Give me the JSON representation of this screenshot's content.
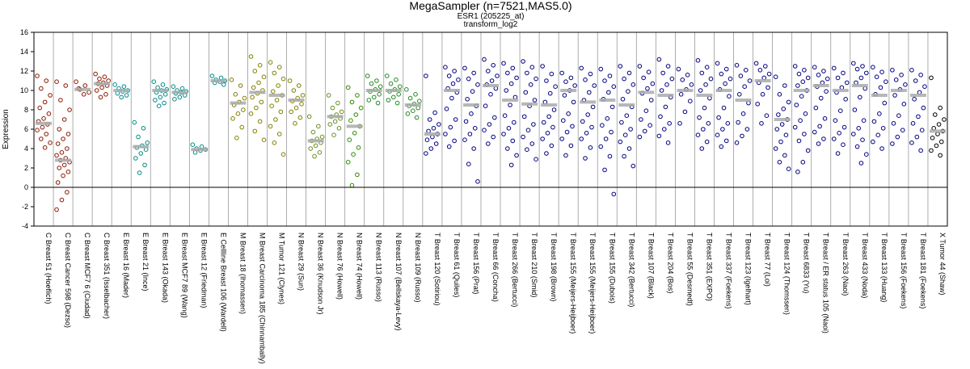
{
  "chart_data": {
    "type": "strip",
    "title": "MegaSampler (n=7521,MAS5.0)",
    "subtitle": [
      "ESR1 (205225_at)",
      "transform_log2"
    ],
    "y_label": "Expression",
    "ylim": [
      -4,
      16
    ],
    "yticks": [
      -4,
      -2,
      0,
      2,
      4,
      6,
      8,
      10,
      12,
      14,
      16
    ],
    "zero_line": 0,
    "groups": [
      {
        "label": "C Breast 51 (Hoeflich)",
        "color": "#8b1a00",
        "median": 6.6,
        "values": [
          11.5,
          11,
          10.2,
          9.5,
          8.8,
          8.2,
          7.6,
          7.1,
          6.8,
          6.5,
          6.2,
          5.9,
          5.5,
          5,
          4.6,
          4.1
        ]
      },
      {
        "label": "C Breast Cancer 598 (Dezso)",
        "color": "#8b1a00",
        "median": 2.8,
        "values": [
          10.9,
          10.5,
          9,
          8,
          7,
          6,
          5.5,
          5,
          4.5,
          4,
          3.6,
          3.3,
          3,
          2.8,
          2.6,
          2.3,
          2,
          1.6,
          1.2,
          0.5,
          -0.5,
          -1.3,
          -2.3
        ]
      },
      {
        "label": "C Breast MCF7 6 (Ciudad)",
        "color": "#8b1a00",
        "median": 10.1,
        "values": [
          10.9,
          10.5,
          10.1,
          9.8,
          9.6,
          10.2
        ]
      },
      {
        "label": "C Breast 351 (Isselbacher)",
        "color": "#8b1a00",
        "median": 10.7,
        "values": [
          11.7,
          11.4,
          11.2,
          11,
          10.8,
          10.7,
          10.5,
          10.3,
          10,
          9.6,
          9.3
        ]
      },
      {
        "label": "E Breast 16 (Mader)",
        "color": "#008b8b",
        "median": 10,
        "values": [
          10.6,
          10.4,
          10.2,
          10,
          9.9,
          9.7,
          9.5,
          9.3
        ]
      },
      {
        "label": "E Breast 21 (Ince)",
        "color": "#008b8b",
        "median": 4.2,
        "values": [
          6.7,
          6.1,
          5.2,
          4.6,
          4.3,
          4.1,
          3.9,
          3.5,
          3,
          2.3,
          1.5
        ]
      },
      {
        "label": "E Breast 143 (Okada)",
        "color": "#008b8b",
        "median": 10,
        "values": [
          10.9,
          10.6,
          10.3,
          10.1,
          10,
          9.8,
          9.6,
          9.3,
          9,
          8.7,
          8.4
        ]
      },
      {
        "label": "E Breast MCF7 89 (Wang)",
        "color": "#008b8b",
        "median": 9.8,
        "values": [
          10.4,
          10.2,
          10,
          9.9,
          9.8,
          9.7,
          9.5,
          9.3,
          9.1
        ]
      },
      {
        "label": "E Breast 12 (Friedman)",
        "color": "#008b8b",
        "median": 3.9,
        "values": [
          4.4,
          4.2,
          4,
          3.9,
          3.8,
          3.6
        ]
      },
      {
        "label": "E Cellline Breast 106 (Wardell)",
        "color": "#008b8b",
        "median": 11,
        "values": [
          11.5,
          11.3,
          11.1,
          11,
          10.9,
          10.8,
          10.6
        ]
      },
      {
        "label": "M Breast 18 (Ihomassen)",
        "color": "#808000",
        "median": 8.7,
        "values": [
          11.1,
          10.5,
          9.6,
          9.2,
          8.8,
          8.5,
          8,
          7.6,
          7.1,
          6.2,
          5.1
        ]
      },
      {
        "label": "M Breast Carcinoma 185 (Chinnambally)",
        "color": "#808000",
        "median": 9.8,
        "values": [
          13.5,
          12.6,
          12,
          11.4,
          10.8,
          10.3,
          10,
          9.7,
          9.3,
          8.8,
          8.2,
          7.6,
          6.8,
          5.8,
          4.9
        ]
      },
      {
        "label": "M Tumor 121 (Clynes)",
        "color": "#808000",
        "median": 9.5,
        "values": [
          12.9,
          12.4,
          11.8,
          11.2,
          10.5,
          9.9,
          9.5,
          9,
          8.4,
          7.8,
          7,
          6.3,
          5.5,
          4.6,
          3.4
        ]
      },
      {
        "label": "N Breast 29 (Sun)",
        "color": "#808000",
        "median": 9,
        "values": [
          11,
          10.5,
          10,
          9.5,
          9.2,
          8.9,
          8.6,
          8.2,
          7.8,
          7.2,
          6.6
        ]
      },
      {
        "label": "N Breast 36 (Knudson Jr)",
        "color": "#6b8e23",
        "median": 4.8,
        "values": [
          7.3,
          6.3,
          5.7,
          5.2,
          5,
          4.8,
          4.6,
          4.3,
          4,
          3.6,
          3.2
        ]
      },
      {
        "label": "N Breast 76 (Howell)",
        "color": "#6b8e23",
        "median": 7.3,
        "values": [
          9.5,
          8.7,
          8.2,
          7.8,
          7.5,
          7.3,
          7.1,
          6.8,
          6.5,
          6.1,
          5.4
        ]
      },
      {
        "label": "N Breast 74 (Howell)",
        "color": "#2e8b00",
        "median": 6.3,
        "values": [
          10.3,
          9.5,
          8.8,
          8.2,
          7.5,
          6.9,
          6.3,
          5.6,
          4.9,
          4.1,
          3.4,
          2.6,
          1.3,
          0.2
        ]
      },
      {
        "label": "N Breast 113 (Russo)",
        "color": "#228b22",
        "median": 10,
        "values": [
          11.5,
          11,
          10.7,
          10.4,
          10.1,
          9.9,
          9.6,
          9.3,
          9,
          8.7
        ]
      },
      {
        "label": "N Breast 107 (Bellskaya-Levy)",
        "color": "#228b22",
        "median": 10,
        "values": [
          11.5,
          11.1,
          10.7,
          10.4,
          10.1,
          9.9,
          9.6,
          9.3,
          9,
          8.7
        ]
      },
      {
        "label": "N Breast 109 (Russo)",
        "color": "#228b22",
        "median": 8.5,
        "values": [
          10.1,
          9.6,
          9.2,
          8.9,
          8.6,
          8.4,
          8.2,
          7.9,
          7.6,
          7.2
        ]
      },
      {
        "label": "T Breast 120 (Sotiriou)",
        "color": "#000080",
        "median": 5.5,
        "values": [
          11.5,
          7.7,
          7,
          6.5,
          6.1,
          5.8,
          5.5,
          5.2,
          4.9,
          4.5,
          4,
          3.5
        ]
      },
      {
        "label": "T Breast 61 (Quiles)",
        "color": "#000080",
        "median": 10,
        "values": [
          12.4,
          12,
          11.5,
          11.1,
          10.7,
          10.2,
          9.8,
          9.2,
          8.1,
          7,
          6.2,
          5.5,
          4.8,
          4.2
        ]
      },
      {
        "label": "T Breast 156 (Prat)",
        "color": "#000080",
        "median": 8.5,
        "values": [
          12.3,
          11.8,
          11.2,
          10.6,
          9.9,
          9.1,
          8.4,
          7.6,
          6.8,
          6.1,
          5.5,
          4.9,
          4,
          2.4,
          0.6
        ]
      },
      {
        "label": "T Breast 66 (Concha)",
        "color": "#000080",
        "median": 10.5,
        "values": [
          13.2,
          12.6,
          12,
          11.5,
          11,
          10.6,
          10.2,
          9.6,
          8.4,
          7.2,
          6.5,
          5.9,
          5.2,
          4.5
        ]
      },
      {
        "label": "T Breast 266 (Bertucci)",
        "color": "#000080",
        "median": 9,
        "values": [
          12.8,
          12.3,
          11.8,
          11.3,
          10.7,
          10,
          9.3,
          8.5,
          7.4,
          6.7,
          6.1,
          5.5,
          4.8,
          4,
          3.3,
          2.3
        ]
      },
      {
        "label": "T Breast 210 (Smid)",
        "color": "#000080",
        "median": 8.6,
        "values": [
          13,
          12.4,
          11.8,
          11.2,
          10.6,
          9.8,
          9,
          8.4,
          7.3,
          6.5,
          5.9,
          5.2,
          4.5,
          3.9,
          2.9
        ]
      },
      {
        "label": "T Breast 198 (Brown)",
        "color": "#000080",
        "median": 8.5,
        "values": [
          12.5,
          11.7,
          11,
          10.4,
          9.7,
          8.8,
          8,
          7.3,
          6.7,
          6.2,
          5.6,
          5,
          4.3,
          3.5
        ]
      },
      {
        "label": "T Breast 155 (Meijers-Heijboer)",
        "color": "#000080",
        "median": 10,
        "values": [
          11.8,
          11.3,
          10.9,
          10.5,
          10,
          9.5,
          8.8,
          7.6,
          6.9,
          6.3,
          5.7,
          5,
          4.3,
          3.3
        ]
      },
      {
        "label": "T Breast 155 (Meijers-Heijboer)",
        "color": "#000080",
        "median": 8.8,
        "values": [
          12.3,
          11.7,
          11.1,
          10.5,
          9.8,
          9,
          8.3,
          7.5,
          6.8,
          6.2,
          5.6,
          5,
          4.1,
          3
        ]
      },
      {
        "label": "T Breast 155 (Dubois)",
        "color": "#000080",
        "median": 9,
        "values": [
          12.2,
          11.5,
          11,
          10.4,
          9.8,
          9.1,
          8.3,
          7.1,
          6.4,
          5.7,
          5,
          4.2,
          3.2,
          1.8,
          -0.7
        ]
      },
      {
        "label": "T Breast 342 (Bertucci)",
        "color": "#000080",
        "median": 8.5,
        "values": [
          12.5,
          11.8,
          11.2,
          10.6,
          9.9,
          9.1,
          8.3,
          7.4,
          6.7,
          6,
          5.4,
          4.7,
          4,
          3.2,
          2.2
        ]
      },
      {
        "label": "T Breast 107 (Black)",
        "color": "#000080",
        "median": 9.8,
        "values": [
          12.5,
          11.9,
          11.3,
          10.7,
          10.2,
          9.7,
          9,
          7.9,
          7,
          6.4,
          5.8,
          5.2
        ]
      },
      {
        "label": "T Breast 204 (Bos)",
        "color": "#000080",
        "median": 9.5,
        "values": [
          13.2,
          12.5,
          11.8,
          11.2,
          10.6,
          10,
          9.3,
          8.3,
          7.3,
          6.6,
          6,
          5.3,
          4.6
        ]
      },
      {
        "label": "T Breast 55 (Desmedt)",
        "color": "#000080",
        "median": 10,
        "values": [
          12.2,
          11.6,
          11.1,
          10.6,
          10.1,
          9.6,
          8.9,
          7.8,
          6.6
        ]
      },
      {
        "label": "T Breast 351 (EXPO)",
        "color": "#000080",
        "median": 9.5,
        "values": [
          13.1,
          12.4,
          11.8,
          11.2,
          10.6,
          10,
          9.2,
          8.2,
          7.2,
          6.6,
          6,
          5.4,
          4.7,
          4
        ]
      },
      {
        "label": "T Breast 337 (Foekens)",
        "color": "#000080",
        "median": 10,
        "values": [
          12.8,
          12.2,
          11.7,
          11.2,
          10.7,
          10.1,
          9.4,
          8.2,
          7.2,
          6.6,
          6,
          5.4,
          4.8,
          4.2
        ]
      },
      {
        "label": "T Breast 123 (Igelhart)",
        "color": "#000080",
        "median": 9,
        "values": [
          12.6,
          12.1,
          11.5,
          11,
          10.4,
          9.6,
          8.7,
          7.6,
          6.7,
          6,
          5.3,
          4.6
        ]
      },
      {
        "label": "T Breast 77 (Loi)",
        "color": "#000080",
        "median": 11,
        "values": [
          12.8,
          12.5,
          12.1,
          11.7,
          11.3,
          10.8,
          10.3,
          9.6,
          8.6,
          7.4,
          6.6
        ]
      },
      {
        "label": "T Breast 124 (Thomssen)",
        "color": "#000080",
        "median": 7,
        "values": [
          11.4,
          10.5,
          9.6,
          8.8,
          8.1,
          7.5,
          7,
          6.5,
          6,
          5.4,
          4.7,
          4,
          3.3,
          2.6,
          1.9
        ]
      },
      {
        "label": "T Breast 6833 (Yu)",
        "color": "#000080",
        "median": 10,
        "values": [
          12.5,
          12.1,
          11.7,
          11.3,
          10.9,
          10.5,
          10,
          9.4,
          8.5,
          7.6,
          6.9,
          6.2,
          5.5,
          4.8,
          3.8,
          2.6,
          1.6
        ]
      },
      {
        "label": "T Breast / ER status 105 (Naoi)",
        "color": "#000080",
        "median": 10.5,
        "values": [
          12.4,
          12,
          11.6,
          11.2,
          10.8,
          10.4,
          9.9,
          9.2,
          8.2,
          7.1,
          6.3,
          5.7,
          5,
          4.5
        ]
      },
      {
        "label": "T Breast 263 (Naoi)",
        "color": "#000080",
        "median": 10,
        "values": [
          12.3,
          11.8,
          11.3,
          10.8,
          10.3,
          9.8,
          9.1,
          7.9,
          6.9,
          6.2,
          5.6,
          5,
          4.4,
          3.5
        ]
      },
      {
        "label": "T Breast 433 (Noda)",
        "color": "#000080",
        "median": 10.5,
        "values": [
          12.8,
          12.5,
          12.2,
          11.8,
          11.3,
          10.8,
          10.2,
          9.3,
          8,
          6.9,
          6.1,
          5.5,
          4.9,
          4.2,
          3.4,
          2.5
        ]
      },
      {
        "label": "T Breast 133 (Huang)",
        "color": "#000080",
        "median": 9.5,
        "values": [
          12.4,
          11.9,
          11.4,
          10.9,
          10.3,
          9.6,
          8.7,
          7.6,
          6.8,
          6.1,
          5.4,
          4.7,
          4
        ]
      },
      {
        "label": "T Breast 156 (Foekens)",
        "color": "#000080",
        "median": 10,
        "values": [
          12.1,
          11.6,
          11.1,
          10.6,
          10.1,
          9.5,
          8.6,
          7.4,
          6.6,
          5.9,
          5.2,
          4.5
        ]
      },
      {
        "label": "T Breast 181 (Foekens)",
        "color": "#000080",
        "median": 9.5,
        "values": [
          12.1,
          11.6,
          11,
          10.4,
          9.8,
          9.1,
          8.2,
          7.3,
          6.6,
          5.9,
          5.2,
          4.6,
          3.8
        ]
      },
      {
        "label": "X Tumor 44 (Shaw)",
        "color": "#000000",
        "median": 5.8,
        "values": [
          11.3,
          8.2,
          7.5,
          7,
          6.5,
          6.1,
          5.8,
          5.5,
          5.1,
          4.7,
          4.3,
          3.8,
          3.3
        ]
      }
    ]
  }
}
